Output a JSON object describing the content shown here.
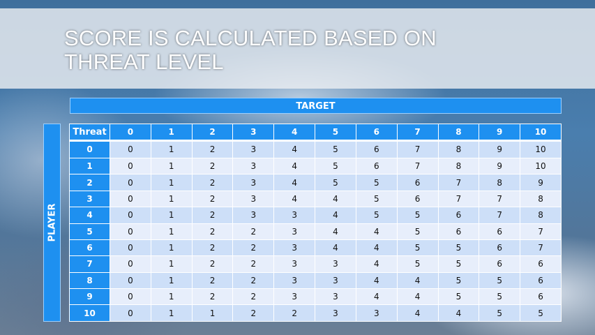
{
  "title": "Score is calculated based on threat level",
  "title_lines": [
    "SCORE IS CALCULATED BASED ON",
    "THREAT LEVEL"
  ],
  "target_label": "TARGET",
  "player_label": "PLAYER",
  "table": {
    "corner": "Threat",
    "columns": [
      "0",
      "1",
      "2",
      "3",
      "4",
      "5",
      "6",
      "7",
      "8",
      "9",
      "10"
    ],
    "rows": [
      {
        "label": "0",
        "values": [
          "0",
          "1",
          "2",
          "3",
          "4",
          "5",
          "6",
          "7",
          "8",
          "9",
          "10"
        ]
      },
      {
        "label": "1",
        "values": [
          "0",
          "1",
          "2",
          "3",
          "4",
          "5",
          "6",
          "7",
          "8",
          "9",
          "10"
        ]
      },
      {
        "label": "2",
        "values": [
          "0",
          "1",
          "2",
          "3",
          "4",
          "5",
          "5",
          "6",
          "7",
          "8",
          "9"
        ]
      },
      {
        "label": "3",
        "values": [
          "0",
          "1",
          "2",
          "3",
          "4",
          "4",
          "5",
          "6",
          "7",
          "7",
          "8"
        ]
      },
      {
        "label": "4",
        "values": [
          "0",
          "1",
          "2",
          "3",
          "3",
          "4",
          "5",
          "5",
          "6",
          "7",
          "8"
        ]
      },
      {
        "label": "5",
        "values": [
          "0",
          "1",
          "2",
          "2",
          "3",
          "4",
          "4",
          "5",
          "6",
          "6",
          "7"
        ]
      },
      {
        "label": "6",
        "values": [
          "0",
          "1",
          "2",
          "2",
          "3",
          "4",
          "4",
          "5",
          "5",
          "6",
          "7"
        ]
      },
      {
        "label": "7",
        "values": [
          "0",
          "1",
          "2",
          "2",
          "3",
          "3",
          "4",
          "5",
          "5",
          "6",
          "6"
        ]
      },
      {
        "label": "8",
        "values": [
          "0",
          "1",
          "2",
          "2",
          "3",
          "3",
          "4",
          "4",
          "5",
          "5",
          "6"
        ]
      },
      {
        "label": "9",
        "values": [
          "0",
          "1",
          "2",
          "2",
          "3",
          "3",
          "4",
          "4",
          "5",
          "5",
          "6"
        ]
      },
      {
        "label": "10",
        "values": [
          "0",
          "1",
          "1",
          "2",
          "2",
          "3",
          "3",
          "4",
          "4",
          "5",
          "5"
        ]
      }
    ]
  },
  "colors": {
    "header_blue": "#1e90f0",
    "row_odd": "#cddff8",
    "row_even": "#e7eefb"
  }
}
